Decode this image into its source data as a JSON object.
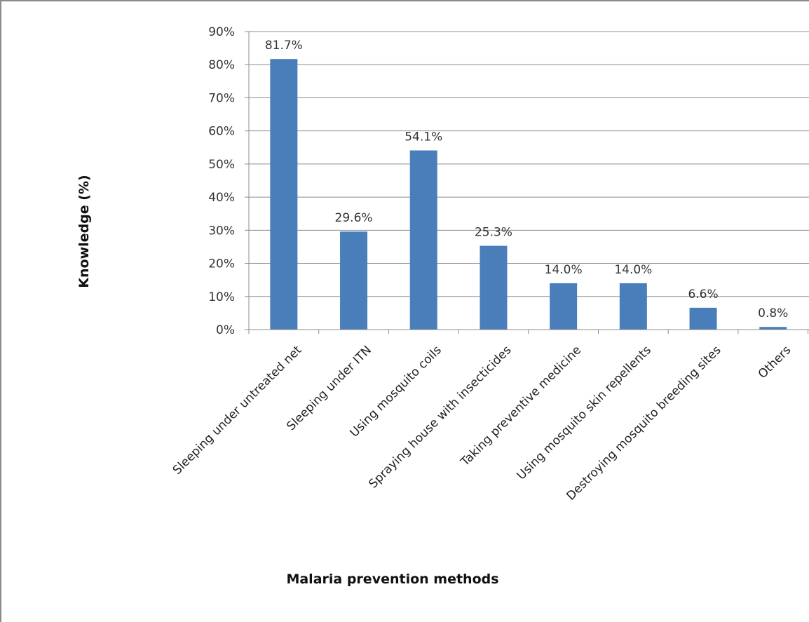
{
  "chart_data": {
    "type": "bar",
    "title": "",
    "xlabel": "Malaria prevention methods",
    "ylabel": "Knowledge (%)",
    "ylim": [
      0,
      90
    ],
    "y_ticks": [
      "0%",
      "10%",
      "20%",
      "30%",
      "40%",
      "50%",
      "60%",
      "70%",
      "80%",
      "90%"
    ],
    "categories": [
      "Sleeping under untreated net",
      "Sleeping under ITN",
      "Using mosquito coils",
      "Spraying house with insecticides",
      "Taking preventive medicine",
      "Using mosquito skin repellents",
      "Destroying mosquito breeding sites",
      "Others"
    ],
    "values": [
      81.7,
      29.6,
      54.1,
      25.3,
      14.0,
      14.0,
      6.6,
      0.8
    ],
    "data_labels": [
      "81.7%",
      "29.6%",
      "54.1%",
      "25.3%",
      "14.0%",
      "14.0%",
      "6.6%",
      "0.8%"
    ],
    "grid": true,
    "legend": "none",
    "bar_color": "#4a7ebb"
  }
}
